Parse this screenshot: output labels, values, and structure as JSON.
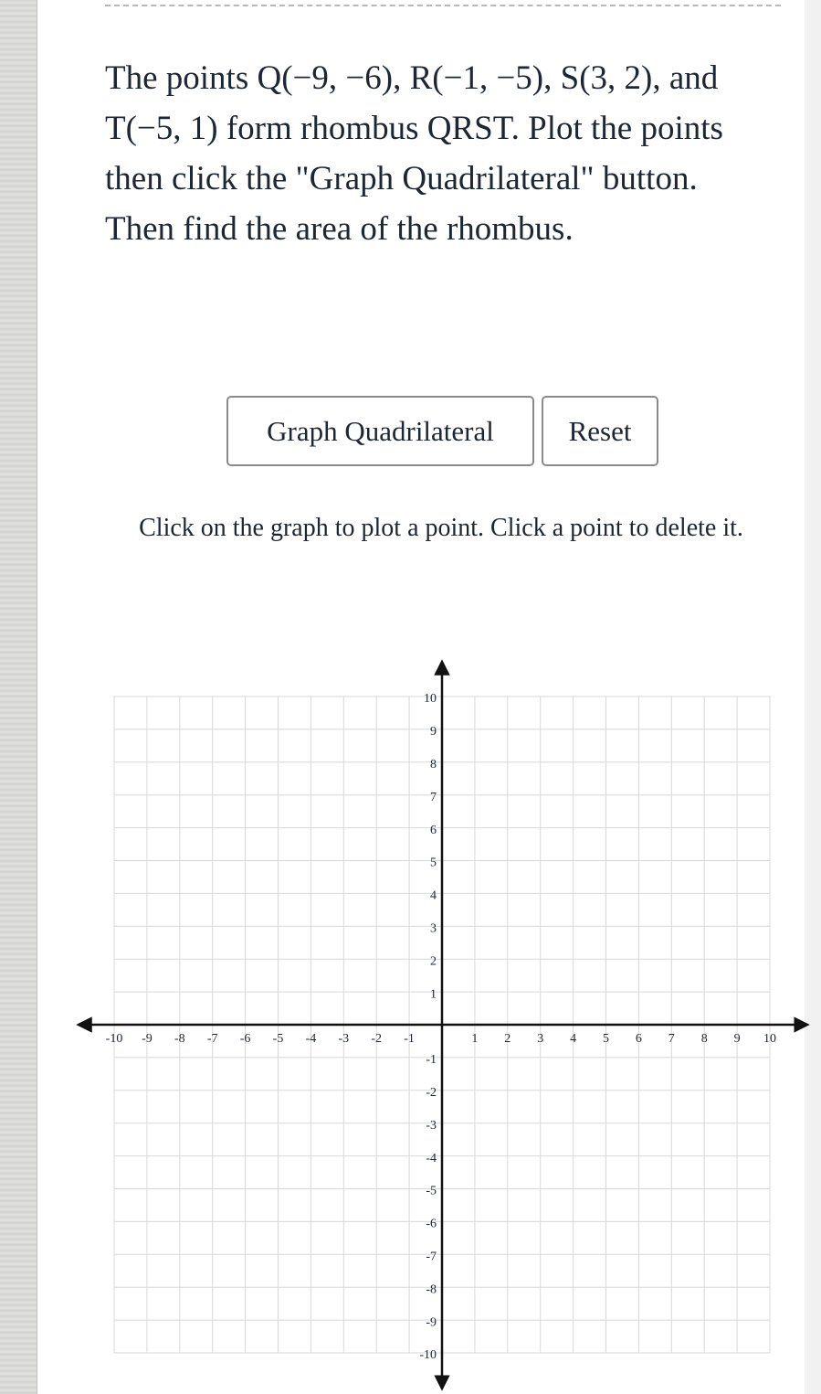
{
  "problem": {
    "text": "The points Q(−9, −6), R(−1, −5), S(3, 2), and T(−5, 1) form rhombus QRST. Plot the points then click the \"Graph Quadrilateral\" button. Then find the area of the rhombus."
  },
  "buttons": [
    "Graph Quadrilateral",
    "Reset"
  ],
  "instructions": "Click on the graph to plot a point. Click a point to delete it.",
  "chart_data": {
    "type": "scatter",
    "xlim": [
      -10,
      10
    ],
    "ylim": [
      -10,
      10
    ],
    "xticks": [
      -10,
      -9,
      -8,
      -7,
      -6,
      -5,
      -4,
      -3,
      -2,
      -1,
      1,
      2,
      3,
      4,
      5,
      6,
      7,
      8,
      9,
      10
    ],
    "yticks": [
      -10,
      -9,
      -8,
      -7,
      -6,
      -5,
      -4,
      -3,
      -2,
      -1,
      1,
      2,
      3,
      4,
      5,
      6,
      7,
      8,
      9,
      10
    ],
    "grid": true
  }
}
